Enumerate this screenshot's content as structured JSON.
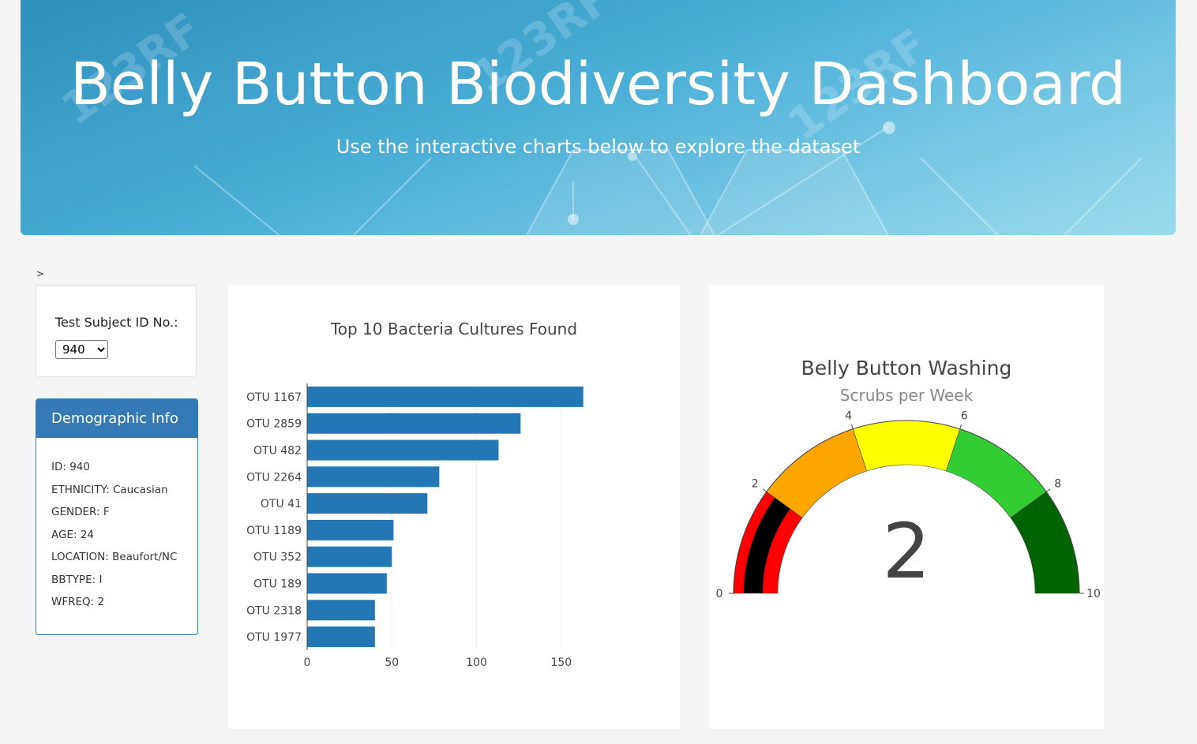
{
  "header": {
    "title": "Belly Button Biodiversity Dashboard",
    "subtitle": "Use the interactive charts below to explore the dataset"
  },
  "stray_text": ">",
  "selector": {
    "label": "Test Subject ID No.:",
    "selected": "940"
  },
  "demographics": {
    "heading": "Demographic Info",
    "items": [
      "ID: 940",
      "ETHNICITY: Caucasian",
      "GENDER: F",
      "AGE: 24",
      "LOCATION: Beaufort/NC",
      "BBTYPE: I",
      "WFREQ: 2"
    ]
  },
  "colors": {
    "bar": "#2277b4",
    "panel": "#337ab7"
  },
  "chart_data": [
    {
      "type": "bar",
      "orientation": "horizontal",
      "title": "Top 10 Bacteria Cultures Found",
      "categories": [
        "OTU 1167",
        "OTU 2859",
        "OTU 482",
        "OTU 2264",
        "OTU 41",
        "OTU 1189",
        "OTU 352",
        "OTU 189",
        "OTU 2318",
        "OTU 1977"
      ],
      "values": [
        163,
        126,
        113,
        78,
        71,
        51,
        50,
        47,
        40,
        40
      ],
      "xlim": [
        0,
        165
      ],
      "xticks": [
        "0",
        "50",
        "100",
        "150"
      ],
      "grid": true
    },
    {
      "type": "gauge",
      "title": "Belly Button Washing",
      "subtitle": "Scrubs per Week",
      "value": 2,
      "value_label": "2",
      "range": [
        0,
        10
      ],
      "ticks": [
        "0",
        "2",
        "4",
        "6",
        "8",
        "10"
      ],
      "steps": [
        {
          "from": 0,
          "to": 2,
          "color": "#ff0000"
        },
        {
          "from": 2,
          "to": 4,
          "color": "#ffa500"
        },
        {
          "from": 4,
          "to": 6,
          "color": "#ffff00"
        },
        {
          "from": 6,
          "to": 8,
          "color": "#32cd32"
        },
        {
          "from": 8,
          "to": 10,
          "color": "#006400"
        }
      ],
      "bar_color": "#000000"
    }
  ]
}
